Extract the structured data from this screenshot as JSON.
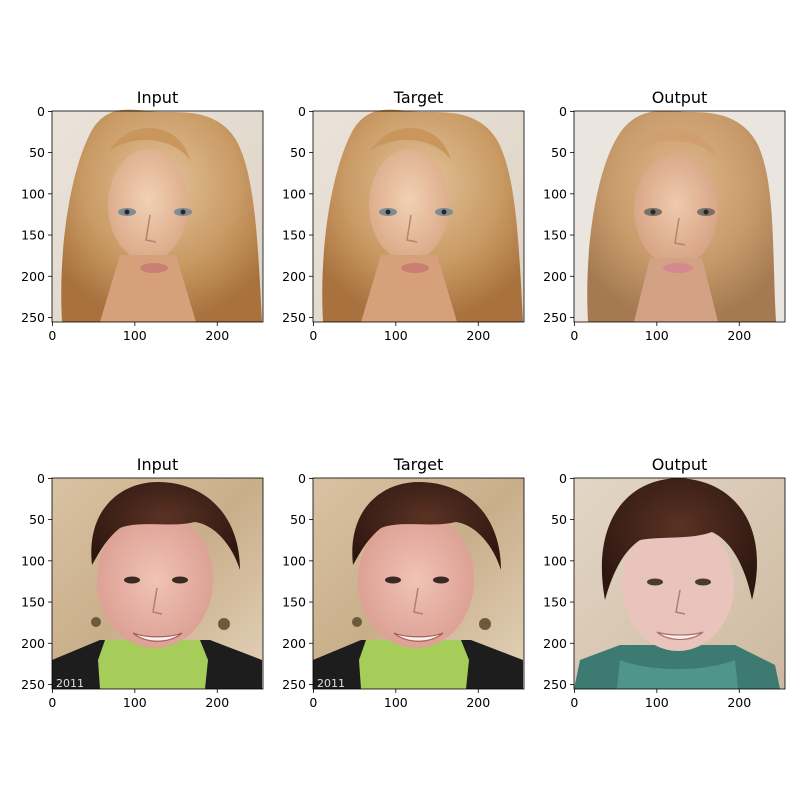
{
  "figure": {
    "rows": [
      {
        "panels": [
          {
            "title": "Input",
            "image": "portrait-blonde-woman"
          },
          {
            "title": "Target",
            "image": "portrait-blonde-woman"
          },
          {
            "title": "Output",
            "image": "portrait-blonde-woman-generated"
          }
        ]
      },
      {
        "panels": [
          {
            "title": "Input",
            "image": "portrait-older-woman-green-scarf"
          },
          {
            "title": "Target",
            "image": "portrait-older-woman-green-scarf"
          },
          {
            "title": "Output",
            "image": "portrait-older-woman-teal-scarf-generated"
          }
        ]
      }
    ],
    "x_ticks": [
      "0",
      "100",
      "200"
    ],
    "y_ticks": [
      "0",
      "50",
      "100",
      "150",
      "200",
      "250"
    ],
    "watermark": "2011"
  }
}
